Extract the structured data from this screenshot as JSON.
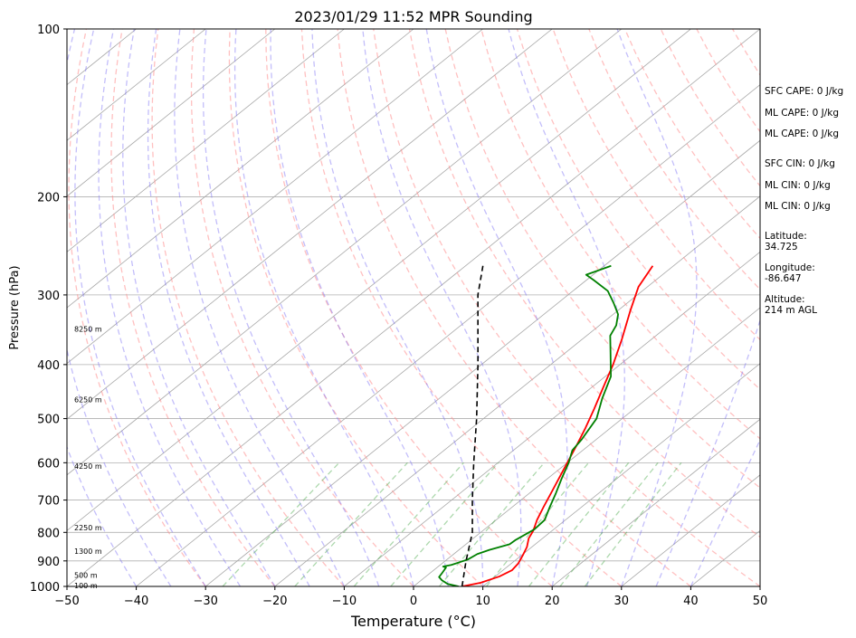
{
  "chart_data": {
    "type": "line",
    "subtype": "skew-t log-p sounding",
    "title": "2023/01/29 11:52 MPR Sounding",
    "xlabel": "Temperature (°C)",
    "ylabel": "Pressure (hPa)",
    "xlim": [
      -50,
      50
    ],
    "ylim": [
      1000,
      100
    ],
    "yscale": "log",
    "x_ticks": [
      -50,
      -40,
      -30,
      -20,
      -10,
      0,
      10,
      20,
      30,
      40,
      50
    ],
    "x_tick_labels": [
      "−50",
      "−40",
      "−30",
      "−20",
      "−10",
      "0",
      "10",
      "20",
      "30",
      "40",
      "50"
    ],
    "y_ticks": [
      1000,
      900,
      800,
      700,
      600,
      500,
      400,
      300,
      200,
      100
    ],
    "y_tick_labels": [
      "1000",
      "900",
      "800",
      "700",
      "600",
      "500",
      "400",
      "300",
      "200",
      "100"
    ],
    "grid": true,
    "series": [
      {
        "id": "temperature",
        "color": "#ff0000",
        "points": [
          {
            "p": 1000,
            "t": 7.0
          },
          {
            "p": 985,
            "t": 9.0
          },
          {
            "p": 960,
            "t": 10.6
          },
          {
            "p": 935,
            "t": 11.3
          },
          {
            "p": 910,
            "t": 11.0
          },
          {
            "p": 880,
            "t": 10.2
          },
          {
            "p": 850,
            "t": 9.3
          },
          {
            "p": 820,
            "t": 8.0
          },
          {
            "p": 795,
            "t": 7.3
          },
          {
            "p": 760,
            "t": 5.9
          },
          {
            "p": 720,
            "t": 4.5
          },
          {
            "p": 680,
            "t": 3.1
          },
          {
            "p": 640,
            "t": 1.6
          },
          {
            "p": 600,
            "t": 0.0
          },
          {
            "p": 560,
            "t": -1.7
          },
          {
            "p": 520,
            "t": -3.6
          },
          {
            "p": 480,
            "t": -5.8
          },
          {
            "p": 440,
            "t": -8.3
          },
          {
            "p": 400,
            "t": -11.0
          },
          {
            "p": 360,
            "t": -14.3
          },
          {
            "p": 320,
            "t": -18.2
          },
          {
            "p": 290,
            "t": -21.3
          },
          {
            "p": 266,
            "t": -23.0
          }
        ]
      },
      {
        "id": "dewpoint",
        "color": "#008000",
        "points": [
          {
            "p": 1000,
            "t": 6.5
          },
          {
            "p": 990,
            "t": 4.5
          },
          {
            "p": 975,
            "t": 3.0
          },
          {
            "p": 962,
            "t": 2.0
          },
          {
            "p": 945,
            "t": 1.7
          },
          {
            "p": 925,
            "t": 1.3
          },
          {
            "p": 921,
            "t": 0.7
          },
          {
            "p": 915,
            "t": 1.6
          },
          {
            "p": 895,
            "t": 3.0
          },
          {
            "p": 875,
            "t": 3.4
          },
          {
            "p": 860,
            "t": 4.4
          },
          {
            "p": 840,
            "t": 6.3
          },
          {
            "p": 825,
            "t": 6.4
          },
          {
            "p": 790,
            "t": 7.2
          },
          {
            "p": 760,
            "t": 7.0
          },
          {
            "p": 720,
            "t": 5.4
          },
          {
            "p": 680,
            "t": 3.8
          },
          {
            "p": 640,
            "t": 2.0
          },
          {
            "p": 600,
            "t": 0.2
          },
          {
            "p": 570,
            "t": -1.5
          },
          {
            "p": 545,
            "t": -2.1
          },
          {
            "p": 500,
            "t": -3.7
          },
          {
            "p": 460,
            "t": -6.5
          },
          {
            "p": 420,
            "t": -9.2
          },
          {
            "p": 380,
            "t": -13.6
          },
          {
            "p": 355,
            "t": -16.6
          },
          {
            "p": 340,
            "t": -17.6
          },
          {
            "p": 325,
            "t": -19.3
          },
          {
            "p": 310,
            "t": -22.0
          },
          {
            "p": 295,
            "t": -25.0
          },
          {
            "p": 282,
            "t": -29.0
          },
          {
            "p": 276,
            "t": -31.0
          },
          {
            "p": 266,
            "t": -29.0
          }
        ]
      },
      {
        "id": "parcel",
        "color": "#000000",
        "dashed": true,
        "points": [
          {
            "p": 1000,
            "t": 7.0
          },
          {
            "p": 900,
            "t": 3.0
          },
          {
            "p": 800,
            "t": -1.2
          },
          {
            "p": 700,
            "t": -7.0
          },
          {
            "p": 600,
            "t": -13.5
          },
          {
            "p": 500,
            "t": -21.0
          },
          {
            "p": 400,
            "t": -30.5
          },
          {
            "p": 300,
            "t": -43.0
          },
          {
            "p": 266,
            "t": -47.5
          }
        ]
      }
    ],
    "height_labels": [
      "100 m",
      "500 m",
      "1300 m",
      "2250 m",
      "4250 m",
      "6250 m",
      "8250 m"
    ],
    "height_label_pressures": [
      997,
      955,
      865,
      785,
      608,
      462,
      345
    ],
    "stats": [
      "SFC CAPE: 0 J/kg",
      "ML CAPE: 0 J/kg",
      "ML CAPE: 0 J/kg",
      "SFC CIN: 0 J/kg",
      "ML CIN: 0 J/kg",
      "ML CIN: 0 J/kg"
    ],
    "location": {
      "latitude_label": "Latitude:",
      "latitude": "34.725",
      "longitude_label": "Longitude:",
      "longitude": "-86.647",
      "altitude_label": "Altitude:",
      "altitude": "214 m AGL"
    }
  }
}
